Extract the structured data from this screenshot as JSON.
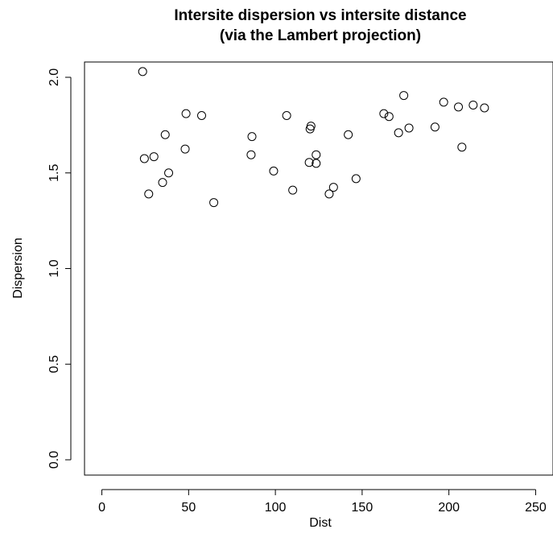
{
  "chart_data": {
    "type": "scatter",
    "title": "Intersite dispersion vs intersite distance",
    "subtitle": "(via the Lambert projection)",
    "xlabel": "Dist",
    "ylabel": "Dispersion",
    "xlim": [
      -10,
      260
    ],
    "ylim": [
      -0.08,
      2.08
    ],
    "xticks": [
      0,
      50,
      100,
      150,
      200,
      250
    ],
    "yticks": [
      0.0,
      0.5,
      1.0,
      1.5,
      2.0
    ],
    "xtick_labels": [
      "0",
      "50",
      "100",
      "150",
      "200",
      "250"
    ],
    "ytick_labels": [
      "0.0",
      "0.5",
      "1.0",
      "1.5",
      "2.0"
    ],
    "grid": false,
    "marker": "open-circle",
    "marker_color": "#000000",
    "points": [
      {
        "x": 23.5,
        "y": 2.03
      },
      {
        "x": 24.5,
        "y": 1.575
      },
      {
        "x": 27.0,
        "y": 1.39
      },
      {
        "x": 30.0,
        "y": 1.585
      },
      {
        "x": 35.0,
        "y": 1.45
      },
      {
        "x": 36.5,
        "y": 1.7
      },
      {
        "x": 38.5,
        "y": 1.5
      },
      {
        "x": 48.0,
        "y": 1.625
      },
      {
        "x": 48.5,
        "y": 1.81
      },
      {
        "x": 57.5,
        "y": 1.8
      },
      {
        "x": 64.5,
        "y": 1.345
      },
      {
        "x": 86.0,
        "y": 1.595
      },
      {
        "x": 86.5,
        "y": 1.69
      },
      {
        "x": 99.0,
        "y": 1.51
      },
      {
        "x": 106.5,
        "y": 1.8
      },
      {
        "x": 110.0,
        "y": 1.41
      },
      {
        "x": 119.5,
        "y": 1.555
      },
      {
        "x": 120.0,
        "y": 1.73
      },
      {
        "x": 120.5,
        "y": 1.745
      },
      {
        "x": 123.5,
        "y": 1.595
      },
      {
        "x": 123.5,
        "y": 1.55
      },
      {
        "x": 131.0,
        "y": 1.39
      },
      {
        "x": 133.5,
        "y": 1.425
      },
      {
        "x": 142.0,
        "y": 1.7
      },
      {
        "x": 146.5,
        "y": 1.47
      },
      {
        "x": 162.5,
        "y": 1.81
      },
      {
        "x": 165.5,
        "y": 1.795
      },
      {
        "x": 171.0,
        "y": 1.71
      },
      {
        "x": 174.0,
        "y": 1.905
      },
      {
        "x": 177.0,
        "y": 1.735
      },
      {
        "x": 192.0,
        "y": 1.74
      },
      {
        "x": 197.0,
        "y": 1.87
      },
      {
        "x": 205.5,
        "y": 1.845
      },
      {
        "x": 207.5,
        "y": 1.635
      },
      {
        "x": 214.0,
        "y": 1.855
      },
      {
        "x": 220.5,
        "y": 1.84
      }
    ]
  }
}
